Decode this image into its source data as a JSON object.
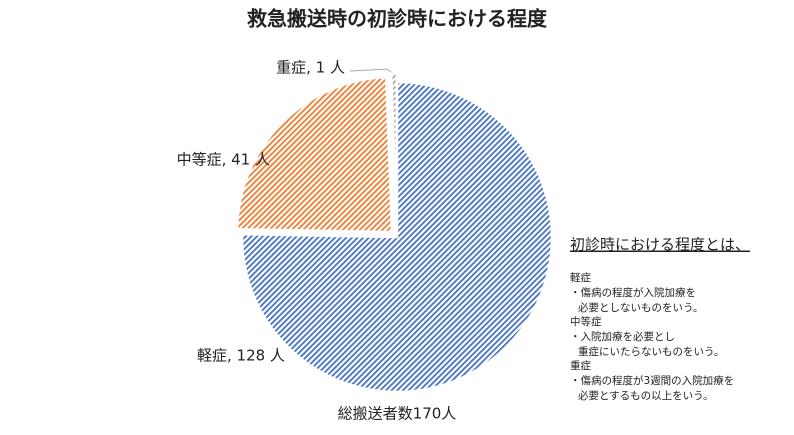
{
  "chart_data": {
    "type": "pie",
    "title": "救急搬送時の初診時における程度",
    "categories": [
      "軽症",
      "中等症",
      "重症"
    ],
    "values": [
      128,
      41,
      1
    ],
    "value_labels": [
      "軽症, 128 人",
      "中等症, 41 人",
      "重症, 1 人"
    ],
    "colors": [
      "#4472c4",
      "#ed7d31",
      "#a5a5a5"
    ],
    "total_label": "総搬送者数170人",
    "definitions": {
      "title": "初診時における程度とは、",
      "items": [
        {
          "term": "軽症",
          "lines": [
            "・傷病の程度が入院加療を",
            "必要としないものをいう。"
          ]
        },
        {
          "term": "中等症",
          "lines": [
            "・入院加療を必要とし",
            "重症にいたらないものをいう。"
          ]
        },
        {
          "term": "重症",
          "lines": [
            "・傷病の程度が3週間の入院加療を",
            "必要とするもの以上をいう。"
          ]
        }
      ]
    }
  }
}
